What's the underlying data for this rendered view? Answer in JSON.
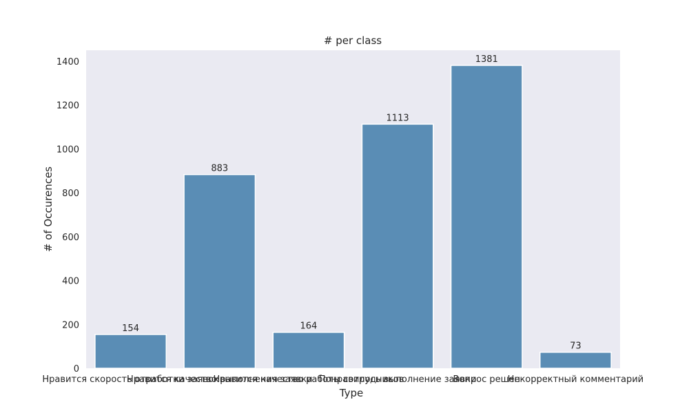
{
  "chart_data": {
    "type": "bar",
    "title": "# per class",
    "xlabel": "Type",
    "ylabel": "# of Occurences",
    "categories": [
      "Нравится скорость отработки заявок",
      "Нравится качество выполнения заявки",
      "Нравится качество работы сотрудников",
      "Понравилось выполнение заявки",
      "Вопрос решен",
      "Некорректный комментарий"
    ],
    "values": [
      154,
      883,
      164,
      1113,
      1381,
      73
    ],
    "value_labels": [
      "154",
      "883",
      "164",
      "1113",
      "1381",
      "73"
    ],
    "ylim": [
      0,
      1450
    ],
    "yticks": [
      0,
      200,
      400,
      600,
      800,
      1000,
      1200,
      1400
    ],
    "ytick_labels": [
      "0",
      "200",
      "400",
      "600",
      "800",
      "1000",
      "1200",
      "1400"
    ],
    "grid": false,
    "colors": {
      "bar": "#5a8db5",
      "plot_background": "#eaeaf2"
    }
  }
}
